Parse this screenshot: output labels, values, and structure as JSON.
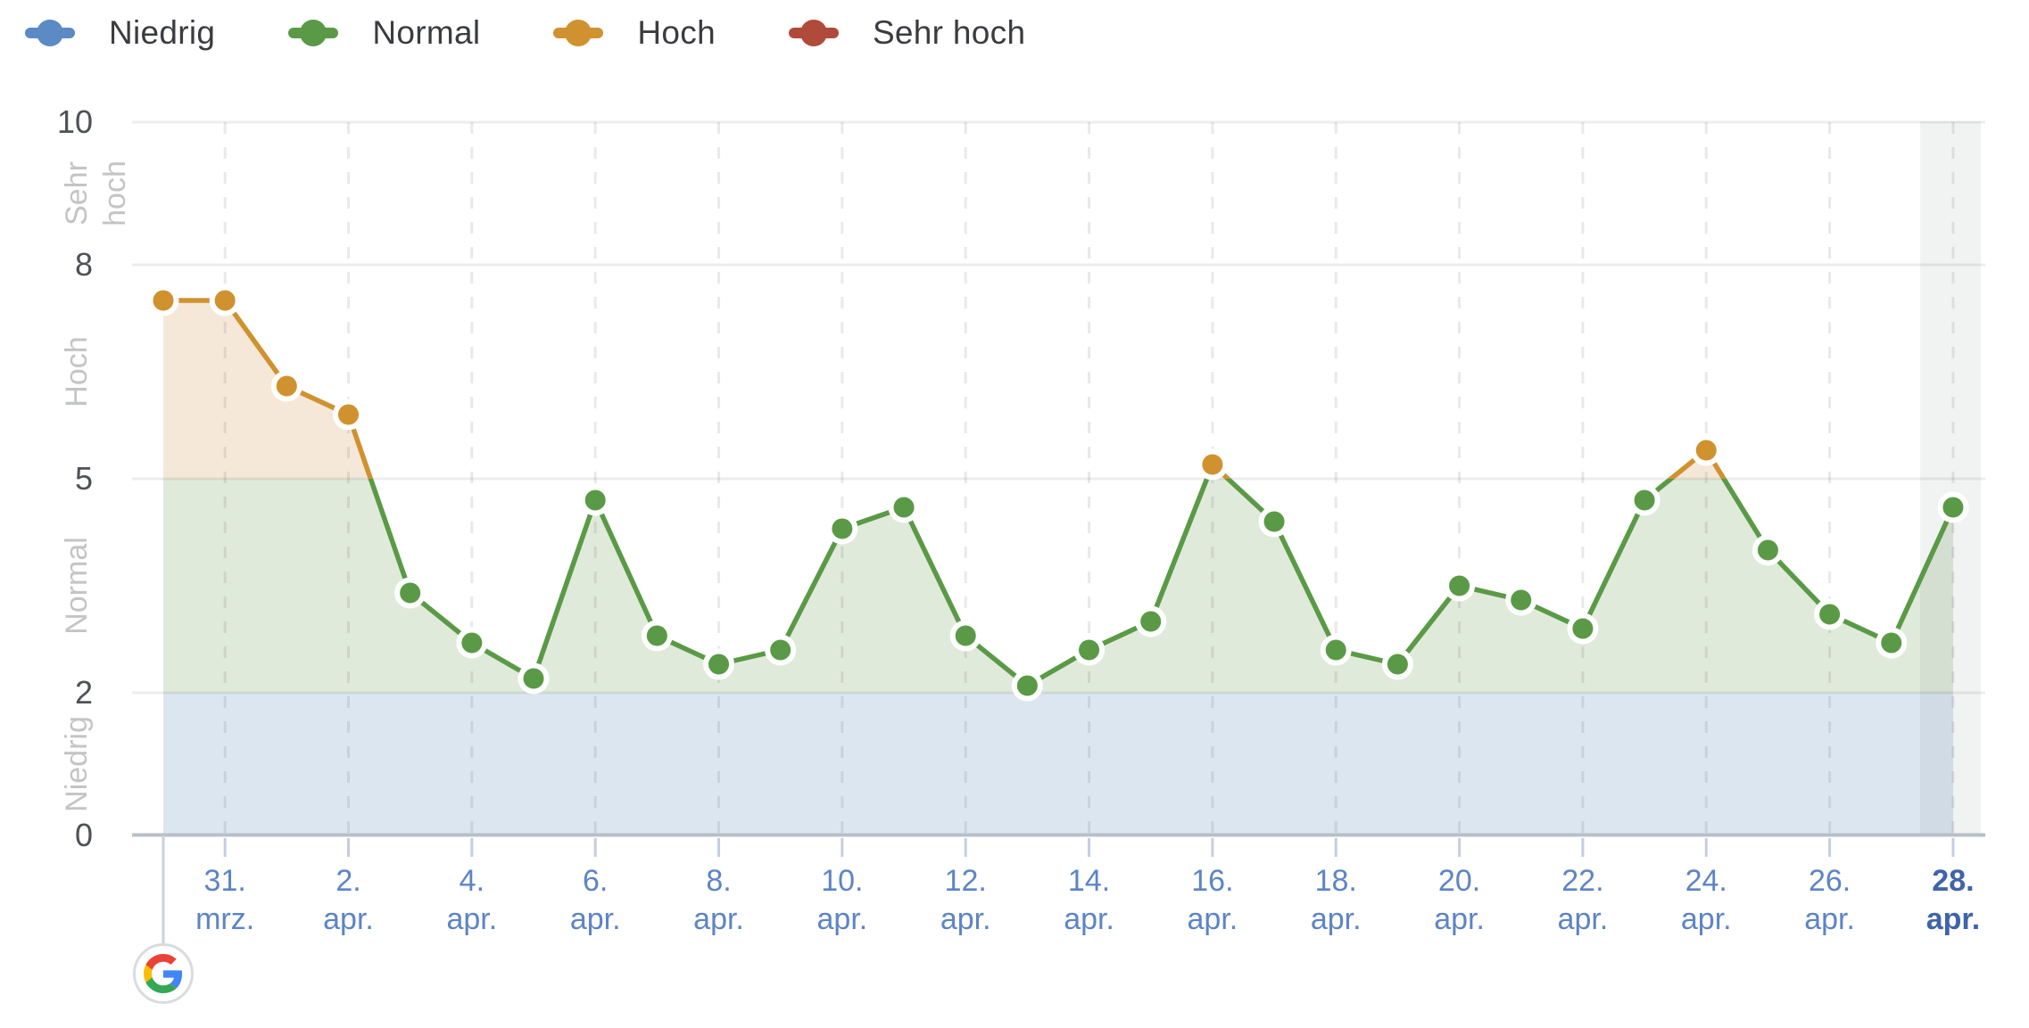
{
  "legend": {
    "items": [
      {
        "label": "Niedrig",
        "color": "#5b8ac4"
      },
      {
        "label": "Normal",
        "color": "#5a9a46"
      },
      {
        "label": "Hoch",
        "color": "#d0912f"
      },
      {
        "label": "Sehr hoch",
        "color": "#b04a3a"
      }
    ]
  },
  "y_axis": {
    "ticks": [
      "10",
      "8",
      "5",
      "2",
      "0"
    ],
    "tick_values": [
      10,
      8,
      5,
      2,
      0
    ],
    "bands": [
      {
        "label": "Sehr hoch",
        "range": [
          8,
          10
        ]
      },
      {
        "label": "Hoch",
        "range": [
          5,
          8
        ]
      },
      {
        "label": "Normal",
        "range": [
          2,
          5
        ]
      },
      {
        "label": "Niedrig",
        "range": [
          0,
          2
        ]
      }
    ]
  },
  "x_axis": {
    "tick_labels": [
      {
        "day_index": 1,
        "top": "31.",
        "bottom": "mrz."
      },
      {
        "day_index": 3,
        "top": "2.",
        "bottom": "apr."
      },
      {
        "day_index": 5,
        "top": "4.",
        "bottom": "apr."
      },
      {
        "day_index": 7,
        "top": "6.",
        "bottom": "apr."
      },
      {
        "day_index": 9,
        "top": "8.",
        "bottom": "apr."
      },
      {
        "day_index": 11,
        "top": "10.",
        "bottom": "apr."
      },
      {
        "day_index": 13,
        "top": "12.",
        "bottom": "apr."
      },
      {
        "day_index": 15,
        "top": "14.",
        "bottom": "apr."
      },
      {
        "day_index": 17,
        "top": "16.",
        "bottom": "apr."
      },
      {
        "day_index": 19,
        "top": "18.",
        "bottom": "apr."
      },
      {
        "day_index": 21,
        "top": "20.",
        "bottom": "apr."
      },
      {
        "day_index": 23,
        "top": "22.",
        "bottom": "apr."
      },
      {
        "day_index": 25,
        "top": "24.",
        "bottom": "apr."
      },
      {
        "day_index": 27,
        "top": "26.",
        "bottom": "apr."
      },
      {
        "day_index": 29,
        "top": "28.",
        "bottom": "apr."
      }
    ],
    "highlighted_label": "28. apr."
  },
  "chart_data": {
    "type": "line",
    "categories": [
      "30. mrz.",
      "31. mrz.",
      "1. apr.",
      "2. apr.",
      "3. apr.",
      "4. apr.",
      "5. apr.",
      "6. apr.",
      "7. apr.",
      "8. apr.",
      "9. apr.",
      "10. apr.",
      "11. apr.",
      "12. apr.",
      "13. apr.",
      "14. apr.",
      "15. apr.",
      "16. apr.",
      "17. apr.",
      "18. apr.",
      "19. apr.",
      "20. apr.",
      "21. apr.",
      "22. apr.",
      "23. apr.",
      "24. apr.",
      "25. apr.",
      "26. apr.",
      "27. apr.",
      "28. apr."
    ],
    "values": [
      7.5,
      7.5,
      6.3,
      5.9,
      3.4,
      2.7,
      2.2,
      4.7,
      2.8,
      2.4,
      2.6,
      4.3,
      4.6,
      2.8,
      2.1,
      2.6,
      3.0,
      5.2,
      4.4,
      2.6,
      2.4,
      3.5,
      3.3,
      2.9,
      4.7,
      5.4,
      4.0,
      3.1,
      2.7,
      4.6
    ],
    "levels": [
      "Hoch",
      "Hoch",
      "Hoch",
      "Hoch",
      "Normal",
      "Normal",
      "Normal",
      "Normal",
      "Normal",
      "Normal",
      "Normal",
      "Normal",
      "Normal",
      "Normal",
      "Normal",
      "Normal",
      "Normal",
      "Hoch",
      "Normal",
      "Normal",
      "Normal",
      "Normal",
      "Normal",
      "Normal",
      "Normal",
      "Hoch",
      "Normal",
      "Normal",
      "Normal",
      "Normal"
    ],
    "ylim": [
      0,
      10
    ],
    "thresholds": {
      "niedrig_max": 2,
      "normal_max": 5,
      "hoch_max": 8,
      "sehr_hoch_max": 10
    },
    "legend_position": "top",
    "grid": {
      "horizontal": "solid",
      "vertical": "dashed-every-2-days"
    },
    "today_highlight_category": "28. apr."
  },
  "colors": {
    "series_normal": "#5a9a46",
    "series_hoch": "#d0912f",
    "fill_niedrig": "#dce6f1",
    "fill_normal": "#e0eadb",
    "fill_hoch": "#f6e8d8",
    "today_band": "#5f6368",
    "grid_line": "#000000",
    "axis_line": "#b7bfc7",
    "x_tick": "#c4cee2",
    "x_label": "#5d84c6",
    "x_label_today": "#3f64a9",
    "y_label": "#4e5156",
    "band_label": "#c3c4c6",
    "point_border": "#ffffff",
    "logo_blue": "#4285F4",
    "logo_green": "#34A853",
    "logo_yellow": "#FBBC05",
    "logo_red": "#EA4335"
  }
}
